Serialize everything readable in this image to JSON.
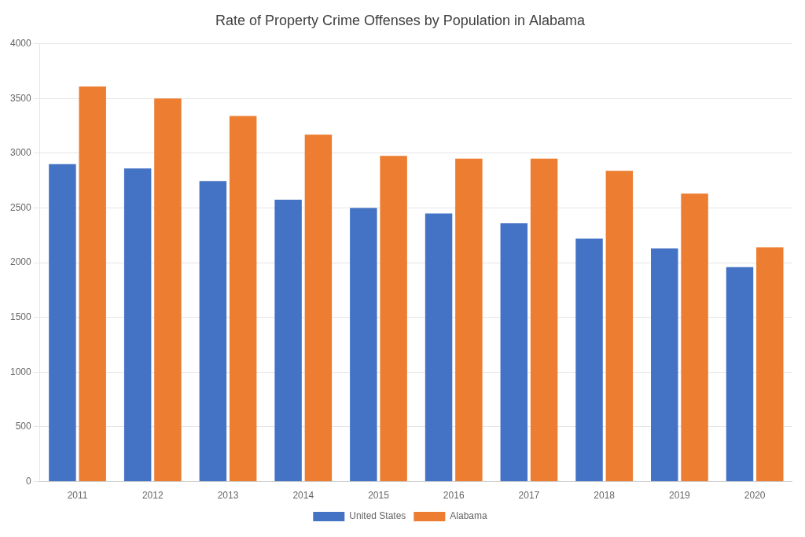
{
  "chart_data": {
    "type": "bar",
    "title": "Rate of Property Crime Offenses by Population in Alabama",
    "categories": [
      "2011",
      "2012",
      "2013",
      "2014",
      "2015",
      "2016",
      "2017",
      "2018",
      "2019",
      "2020"
    ],
    "series": [
      {
        "name": "United States",
        "color": "#4472C4",
        "values": [
          2900,
          2860,
          2745,
          2575,
          2500,
          2450,
          2360,
          2220,
          2130,
          1960
        ]
      },
      {
        "name": "Alabama",
        "color": "#ED7D31",
        "values": [
          3610,
          3500,
          3340,
          3170,
          2975,
          2950,
          2950,
          2840,
          2630,
          2140
        ]
      }
    ],
    "ylim": [
      0,
      4000
    ],
    "yticks": [
      0,
      500,
      1000,
      1500,
      2000,
      2500,
      3000,
      3500,
      4000
    ],
    "grid": true,
    "legend": "bottom"
  }
}
